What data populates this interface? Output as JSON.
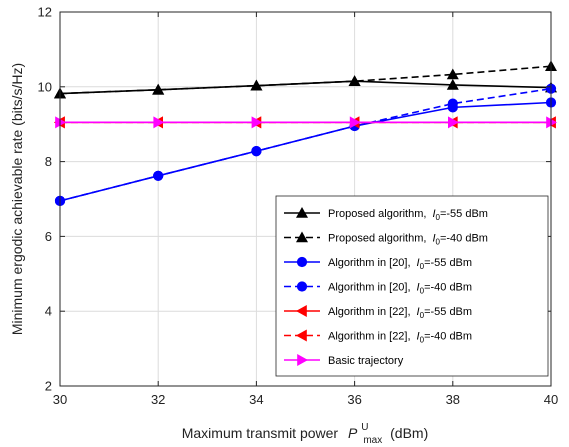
{
  "chart_data": {
    "type": "line",
    "xlabel": "Maximum transmit power",
    "xlabel_symbol": "P",
    "xlabel_sup": "U",
    "xlabel_sub": "max",
    "xlabel_unit": "(dBm)",
    "ylabel": "Minimum ergodic achievable rate (bits/s/Hz)",
    "xlim": [
      30,
      40
    ],
    "ylim": [
      2,
      12
    ],
    "xticks": [
      "30",
      "32",
      "34",
      "36",
      "38",
      "40"
    ],
    "yticks": [
      "2",
      "4",
      "6",
      "8",
      "10",
      "12"
    ],
    "grid": true,
    "legend_position": "bottom-right",
    "x": [
      30,
      32,
      34,
      36,
      38,
      40
    ],
    "series": [
      {
        "label": "Proposed algorithm,",
        "param": "-55 dBm",
        "color": "#000000",
        "dash": "solid",
        "marker": "triangle-up",
        "values": [
          9.82,
          9.92,
          10.03,
          10.15,
          10.05,
          9.98
        ]
      },
      {
        "label": "Proposed algorithm,",
        "param": "-40 dBm",
        "color": "#000000",
        "dash": "dashed",
        "marker": "triangle-up",
        "values": [
          9.82,
          9.92,
          10.03,
          10.15,
          10.33,
          10.55
        ]
      },
      {
        "label": "Algorithm in [20],",
        "param": "-55 dBm",
        "color": "#0000ff",
        "dash": "solid",
        "marker": "circle",
        "values": [
          6.95,
          7.62,
          8.28,
          8.95,
          9.45,
          9.58
        ]
      },
      {
        "label": "Algorithm in [20],",
        "param": "-40 dBm",
        "color": "#0000ff",
        "dash": "dashed",
        "marker": "circle",
        "values": [
          6.95,
          7.62,
          8.28,
          8.95,
          9.55,
          9.95
        ]
      },
      {
        "label": "Algorithm in [22],",
        "param": "-55 dBm",
        "color": "#ff0000",
        "dash": "solid",
        "marker": "triangle-left",
        "values": [
          9.05,
          9.05,
          9.05,
          9.05,
          9.05,
          9.05
        ]
      },
      {
        "label": "Algorithm in [22],",
        "param": "-40 dBm",
        "color": "#ff0000",
        "dash": "dashed",
        "marker": "triangle-left",
        "values": [
          9.05,
          9.05,
          9.05,
          9.05,
          9.05,
          9.05
        ]
      },
      {
        "label": "Basic trajectory",
        "param": "",
        "color": "#ff00ff",
        "dash": "solid",
        "marker": "triangle-right",
        "values": [
          9.05,
          9.05,
          9.05,
          9.05,
          9.05,
          9.05
        ]
      }
    ]
  }
}
